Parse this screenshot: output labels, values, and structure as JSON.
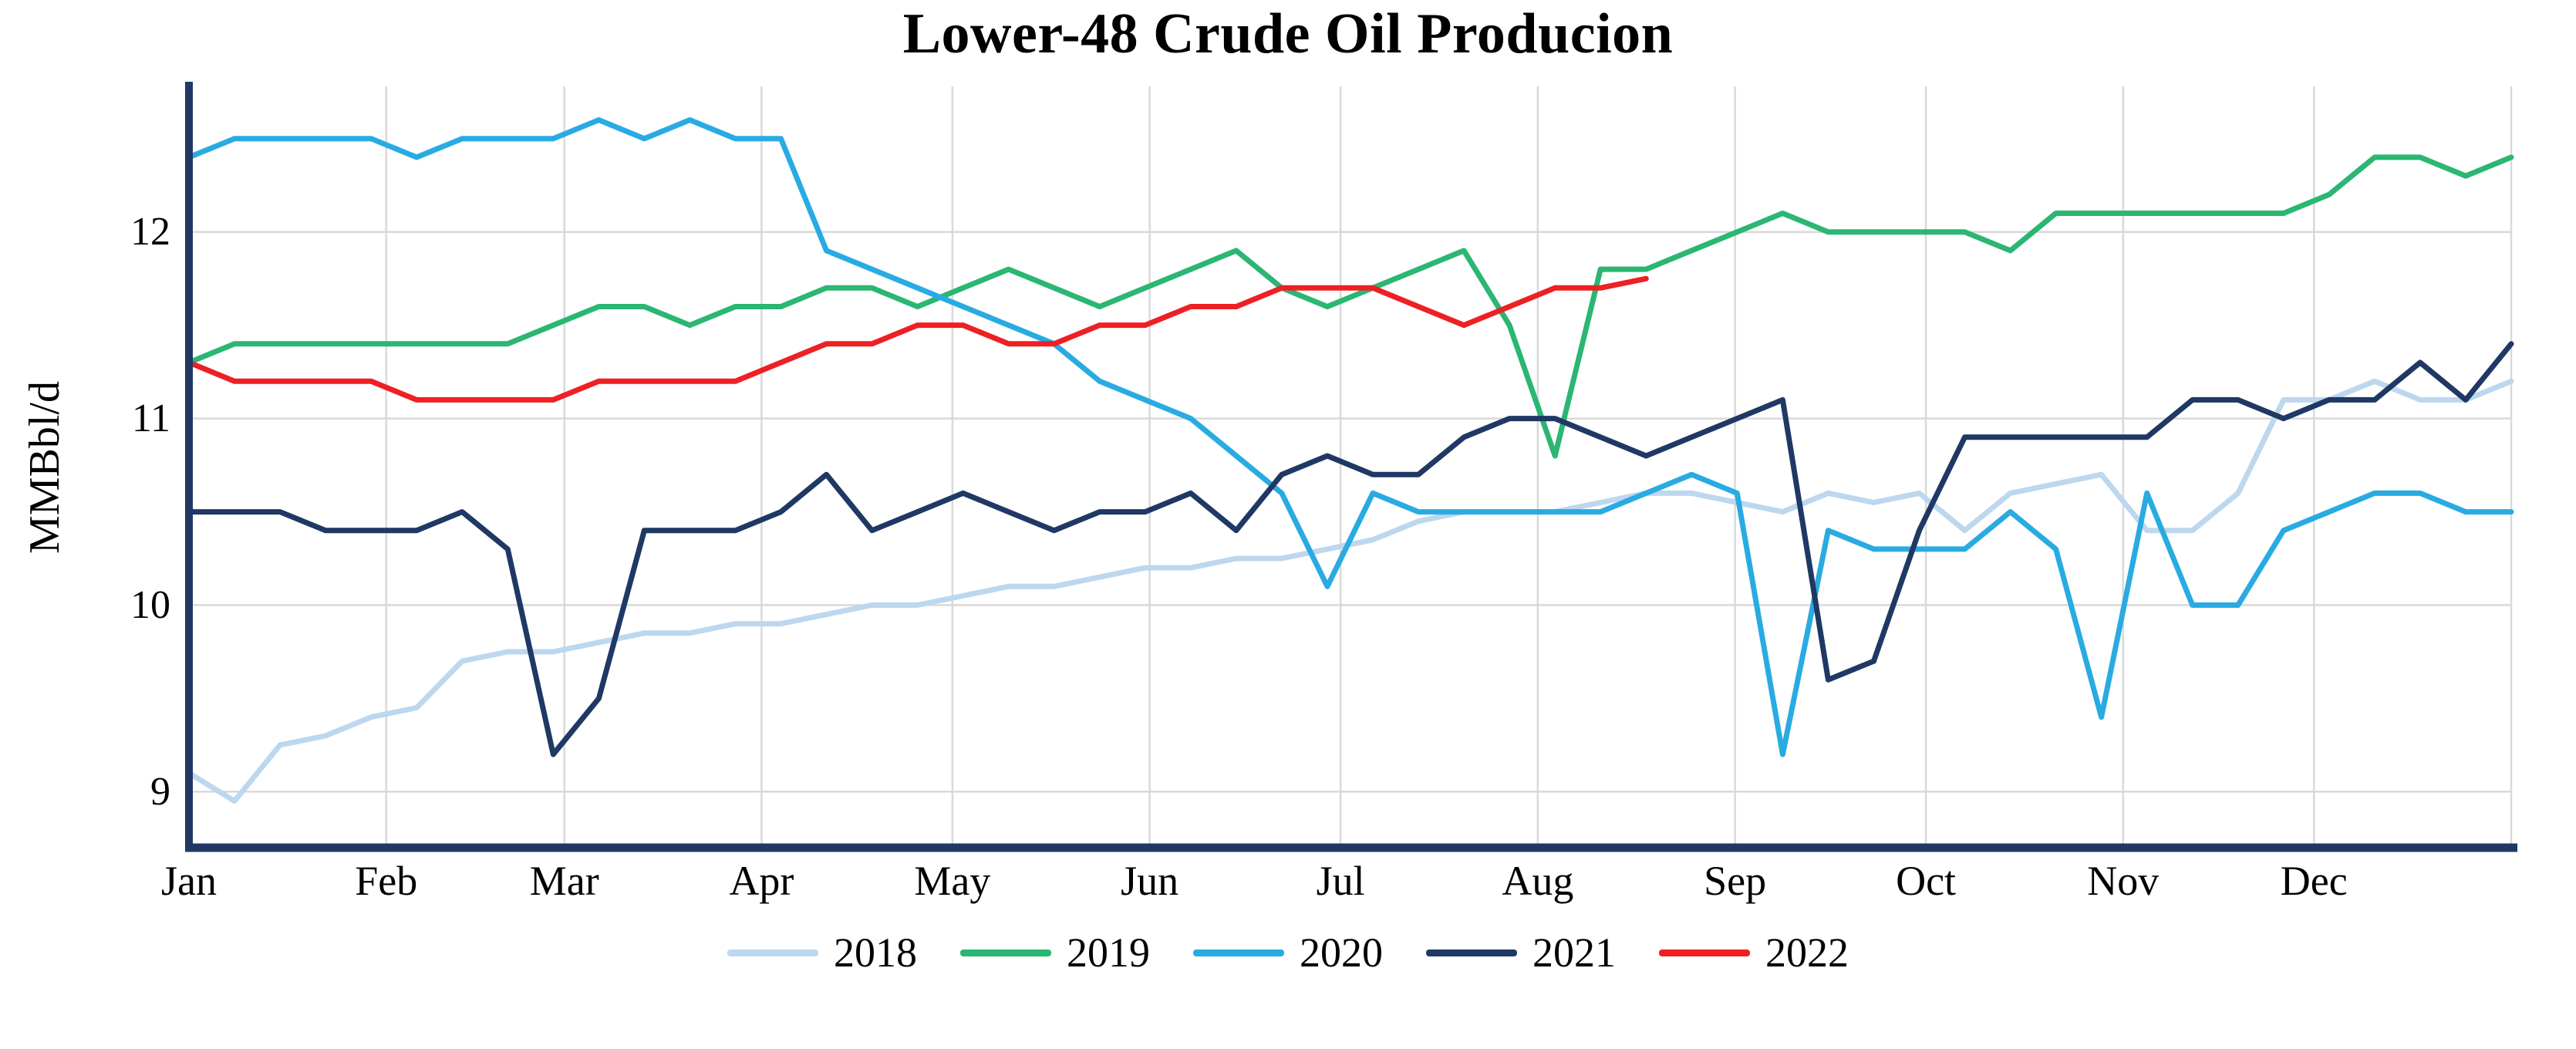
{
  "chart_data": {
    "type": "line",
    "title": "Lower-48 Crude Oil Producion",
    "ylabel": "MMBbl/d",
    "x_axis": {
      "months": [
        "Jan",
        "Feb",
        "Mar",
        "Apr",
        "May",
        "Jun",
        "Jul",
        "Aug",
        "Sep",
        "Oct",
        "Nov",
        "Dec"
      ],
      "month_start_days": [
        0,
        31,
        59,
        90,
        120,
        151,
        181,
        212,
        243,
        273,
        304,
        334
      ],
      "days_per_year": 365,
      "sampling": "weekly"
    },
    "y_axis": {
      "ticks": [
        9,
        10,
        11,
        12
      ],
      "range": [
        8.7,
        12.78
      ]
    },
    "grid": true,
    "legend_position": "bottom",
    "colors": {
      "axis": "#1f3864",
      "grid": "#d9d9d9",
      "background": "#ffffff"
    },
    "series": [
      {
        "name": "2018",
        "color": "#bdd7ee",
        "values": [
          9.1,
          8.95,
          9.25,
          9.3,
          9.4,
          9.45,
          9.7,
          9.75,
          9.75,
          9.8,
          9.85,
          9.85,
          9.9,
          9.9,
          9.95,
          10.0,
          10.0,
          10.05,
          10.1,
          10.1,
          10.15,
          10.2,
          10.2,
          10.25,
          10.25,
          10.3,
          10.35,
          10.45,
          10.5,
          10.5,
          10.5,
          10.55,
          10.6,
          10.6,
          10.55,
          10.5,
          10.6,
          10.55,
          10.6,
          10.4,
          10.6,
          10.65,
          10.7,
          10.4,
          10.4,
          10.6,
          11.1,
          11.1,
          11.2,
          11.1,
          11.1,
          11.2
        ]
      },
      {
        "name": "2019",
        "color": "#2bb673",
        "values": [
          11.3,
          11.4,
          11.4,
          11.4,
          11.4,
          11.4,
          11.4,
          11.4,
          11.5,
          11.6,
          11.6,
          11.5,
          11.6,
          11.6,
          11.7,
          11.7,
          11.6,
          11.7,
          11.8,
          11.7,
          11.6,
          11.7,
          11.8,
          11.9,
          11.7,
          11.6,
          11.7,
          11.8,
          11.9,
          11.5,
          10.8,
          11.8,
          11.8,
          11.9,
          12.0,
          12.1,
          12.0,
          12.0,
          12.0,
          12.0,
          11.9,
          12.1,
          12.1,
          12.1,
          12.1,
          12.1,
          12.1,
          12.2,
          12.4,
          12.4,
          12.3,
          12.4
        ]
      },
      {
        "name": "2020",
        "color": "#29abe2",
        "values": [
          12.4,
          12.5,
          12.5,
          12.5,
          12.5,
          12.4,
          12.5,
          12.5,
          12.5,
          12.6,
          12.5,
          12.6,
          12.5,
          12.5,
          11.9,
          11.8,
          11.7,
          11.6,
          11.5,
          11.4,
          11.2,
          11.1,
          11.0,
          10.8,
          10.6,
          10.1,
          10.6,
          10.5,
          10.5,
          10.5,
          10.5,
          10.5,
          10.6,
          10.7,
          10.6,
          9.2,
          10.4,
          10.3,
          10.3,
          10.3,
          10.5,
          10.3,
          9.4,
          10.6,
          10.0,
          10.0,
          10.4,
          10.5,
          10.6,
          10.6,
          10.5,
          10.5
        ]
      },
      {
        "name": "2021",
        "color": "#1f3864",
        "values": [
          10.5,
          10.5,
          10.5,
          10.4,
          10.4,
          10.4,
          10.5,
          10.3,
          9.2,
          9.5,
          10.4,
          10.4,
          10.4,
          10.5,
          10.7,
          10.4,
          10.5,
          10.6,
          10.5,
          10.4,
          10.5,
          10.5,
          10.6,
          10.4,
          10.7,
          10.8,
          10.7,
          10.7,
          10.9,
          11.0,
          11.0,
          10.9,
          10.8,
          10.9,
          11.0,
          11.1,
          9.6,
          9.7,
          10.4,
          10.9,
          10.9,
          10.9,
          10.9,
          10.9,
          11.1,
          11.1,
          11.0,
          11.1,
          11.1,
          11.3,
          11.1,
          11.4
        ]
      },
      {
        "name": "2022",
        "color": "#ed2024",
        "values": [
          11.3,
          11.2,
          11.2,
          11.2,
          11.2,
          11.1,
          11.1,
          11.1,
          11.1,
          11.2,
          11.2,
          11.2,
          11.2,
          11.3,
          11.4,
          11.4,
          11.5,
          11.5,
          11.4,
          11.4,
          11.5,
          11.5,
          11.6,
          11.6,
          11.7,
          11.7,
          11.7,
          11.6,
          11.5,
          11.6,
          11.7,
          11.7,
          11.75
        ]
      }
    ]
  }
}
